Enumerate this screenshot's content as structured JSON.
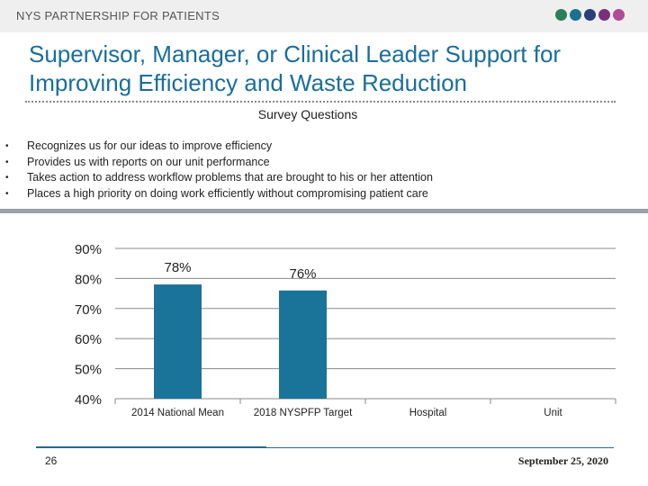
{
  "header": {
    "org_name": "NYS PARTNERSHIP FOR PATIENTS",
    "dots": [
      "#2e7d5b",
      "#1f6f8f",
      "#2b3f7a",
      "#7a2f7a",
      "#b24a9a"
    ]
  },
  "slide": {
    "title_line1": "Supervisor, Manager, or Clinical Leader Support for",
    "title_line2": "Improving Efficiency and Waste Reduction",
    "section_heading": "Survey Questions",
    "bullet_glyph": "•",
    "questions": [
      "Recognizes us for our ideas to improve efficiency",
      "Provides us with reports on our unit performance",
      "Takes action to address workflow problems that are brought to his or her attention",
      "Places a high priority on doing work efficiently without compromising patient care"
    ]
  },
  "chart_data": {
    "type": "bar",
    "categories": [
      "2014 National Mean",
      "2018 NYSPFP Target",
      "Hospital",
      "Unit"
    ],
    "values": [
      78,
      76,
      null,
      null
    ],
    "data_labels": [
      "78%",
      "76%",
      "",
      ""
    ],
    "ylim": [
      40,
      90
    ],
    "yticks": [
      40,
      50,
      60,
      70,
      80,
      90
    ],
    "ytick_labels": [
      "40%",
      "50%",
      "60%",
      "70%",
      "80%",
      "90%"
    ],
    "grid": true,
    "bar_color": "#1a7499",
    "title": "",
    "xlabel": "",
    "ylabel": ""
  },
  "footer": {
    "page_number": "26",
    "date": "September 25, 2020"
  }
}
